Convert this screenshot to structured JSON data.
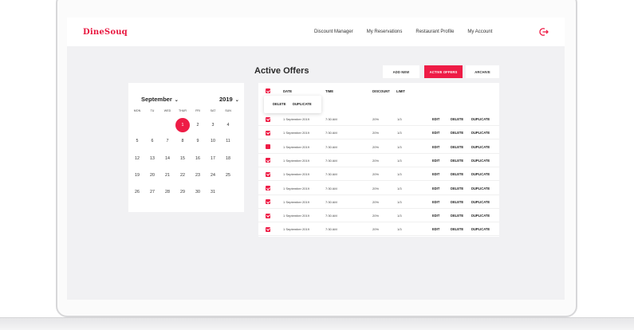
{
  "brand": {
    "name": "DineSouq",
    "color": "#e8173f"
  },
  "nav": [
    "Discount Manager",
    "My Reservations",
    "Restaurant Profile",
    "My Account"
  ],
  "logout_icon": "logout-icon",
  "page": {
    "title": "Active Offers"
  },
  "actions": {
    "add_new": "ADD NEW",
    "active_offers": "ACTIVE OFFERS",
    "archive": "ARCHIVE"
  },
  "calendar": {
    "month": "September",
    "year": "2019",
    "dropdown_icon": "⌄",
    "weekdays": [
      "MON",
      "TU",
      "WED",
      "THUR",
      "FRI",
      "SAT",
      "SUN"
    ],
    "weeks": [
      [
        "",
        "",
        "",
        "1",
        "2",
        "3",
        "4"
      ],
      [
        "5",
        "6",
        "7",
        "8",
        "9",
        "10",
        "11"
      ],
      [
        "12",
        "13",
        "14",
        "15",
        "16",
        "17",
        "18"
      ],
      [
        "19",
        "20",
        "21",
        "22",
        "23",
        "24",
        "25"
      ],
      [
        "26",
        "27",
        "28",
        "29",
        "30",
        "31",
        ""
      ]
    ],
    "selected_day": "1"
  },
  "table": {
    "headers": {
      "date": "DATE",
      "time": "TIME",
      "discount": "DISCOUNT",
      "limit": "LIMIT"
    },
    "popup": {
      "delete": "DELETE",
      "duplicate": "DUPLICATE"
    },
    "rows": [
      {
        "date": "1 September 2019",
        "time": "7:30 AM",
        "discount": "20%",
        "limit": "1/3"
      },
      {
        "date": "1 September 2019",
        "time": "7:30 AM",
        "discount": "20%",
        "limit": "1/3"
      },
      {
        "date": "1 September 2019",
        "time": "7:30 AM",
        "discount": "20%",
        "limit": "1/3"
      },
      {
        "date": "1 September 2019",
        "time": "7:30 AM",
        "discount": "20%",
        "limit": "1/3"
      },
      {
        "date": "1 September 2019",
        "time": "7:30 AM",
        "discount": "20%",
        "limit": "1/3"
      },
      {
        "date": "1 September 2019",
        "time": "7:30 AM",
        "discount": "20%",
        "limit": "1/3"
      },
      {
        "date": "1 September 2019",
        "time": "7:30 AM",
        "discount": "20%",
        "limit": "1/3"
      },
      {
        "date": "1 September 2019",
        "time": "7:30 AM",
        "discount": "20%",
        "limit": "1/3"
      },
      {
        "date": "1 September 2019",
        "time": "7:30 AM",
        "discount": "20%",
        "limit": "1/3"
      }
    ],
    "row_actions": {
      "edit": "EDIT",
      "delete": "DELETE",
      "duplicate": "DUPLICATE"
    }
  }
}
